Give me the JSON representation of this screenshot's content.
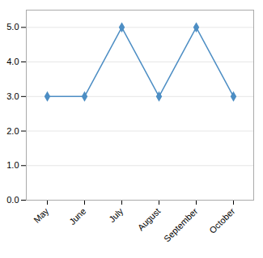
{
  "chart_data": {
    "type": "line",
    "categories": [
      "May",
      "June",
      "July",
      "August",
      "September",
      "October"
    ],
    "values": [
      3,
      3,
      5,
      3,
      5,
      3
    ],
    "color": "#4d8ec4",
    "marker": "diamond",
    "ylim": [
      0,
      5.5
    ],
    "yticks": [
      0,
      1,
      2,
      3,
      4,
      5
    ],
    "grid": true
  }
}
